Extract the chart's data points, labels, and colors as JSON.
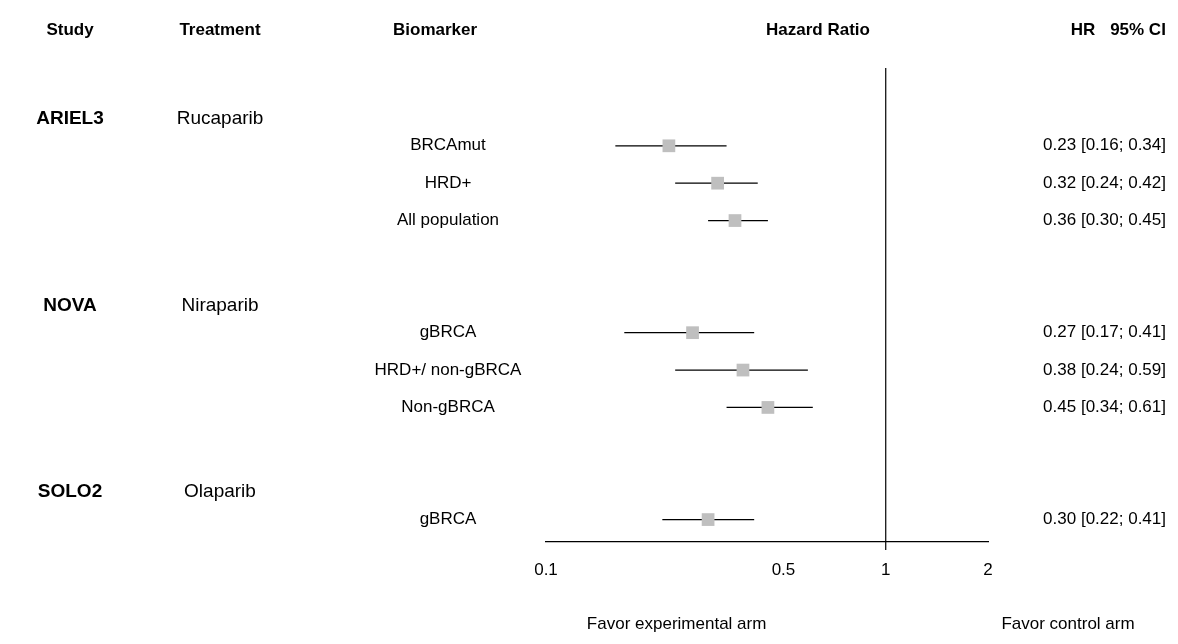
{
  "chart_data": {
    "type": "scatter",
    "orientation": "horizontal",
    "xlabel": "Hazard Ratio",
    "categories": [
      null,
      "BRCAmut",
      "HRD+",
      "All population",
      null,
      null,
      "gBRCA",
      "HRD+/ non-gBRCA",
      "Non-gBRCA",
      null,
      null,
      "gBRCA"
    ],
    "color": "#bfbfbf",
    "values": [
      null,
      0.23,
      0.32,
      0.36,
      null,
      null,
      0.27,
      0.38,
      0.45,
      null,
      null,
      0.3
    ],
    "errors": [
      null,
      [
        0.16,
        0.34
      ],
      [
        0.24,
        0.42
      ],
      [
        0.3,
        0.45
      ],
      null,
      null,
      [
        0.17,
        0.41
      ],
      [
        0.24,
        0.59
      ],
      [
        0.34,
        0.61
      ],
      null,
      null,
      [
        0.22,
        0.41
      ]
    ],
    "value_labels": [
      null,
      "0.23 [0.16; 0.34]",
      "0.32 [0.24; 0.42]",
      "0.36 [0.30; 0.45]",
      null,
      null,
      "0.27 [0.17; 0.41]",
      "0.38 [0.24; 0.59]",
      "0.45 [0.34; 0.61]",
      null,
      null,
      "0.30 [0.22; 0.41]"
    ],
    "log": "x",
    "xlim": [
      0.1,
      2
    ],
    "xticks": [
      0.1,
      0.5,
      1,
      2
    ],
    "grid": false,
    "legend": false,
    "marker": "square",
    "ref_lines": [
      {
        "axis": "x",
        "value": 1,
        "color": "#000000"
      }
    ],
    "annotations": [
      "Study",
      "Treatment",
      "Biomarker",
      "HR",
      "95% CI",
      "ARIEL3",
      "Rucaparib",
      "NOVA",
      "Niraparib",
      "SOLO2",
      "Olaparib",
      "Favor experimental arm",
      "Favor control arm"
    ]
  }
}
